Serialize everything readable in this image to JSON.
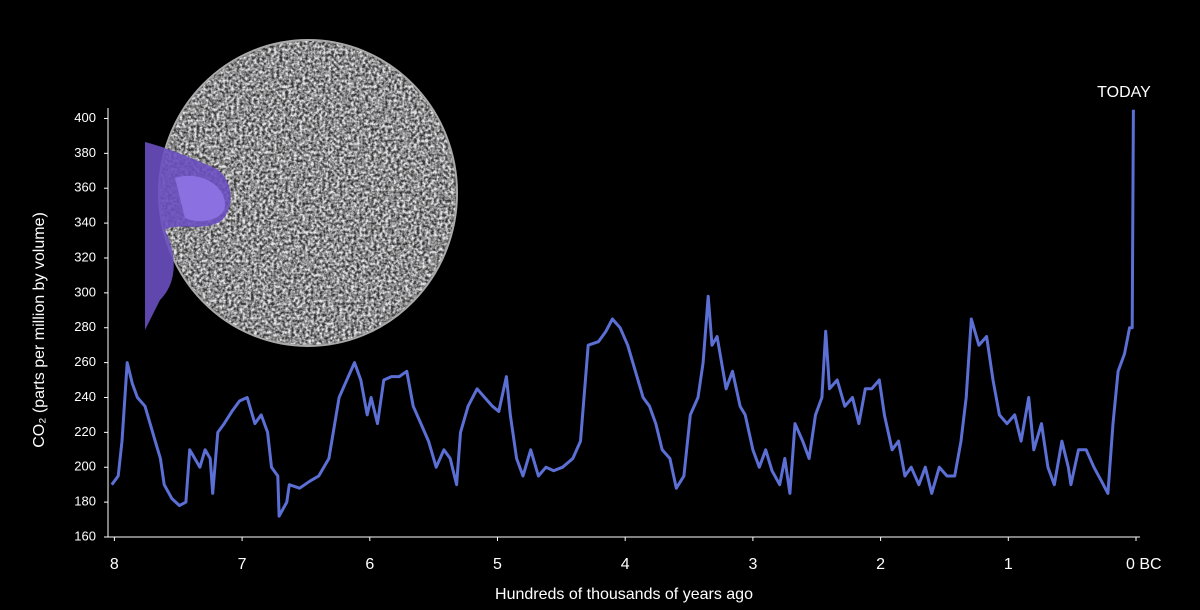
{
  "chart_data": {
    "type": "line",
    "annotation": "TODAY",
    "x_label": "Hundreds of thousands of years ago",
    "y_label": "CO₂ (parts per million by volume)",
    "x": [
      8.02,
      7.97,
      7.94,
      7.9,
      7.86,
      7.82,
      7.76,
      7.72,
      7.68,
      7.64,
      7.61,
      7.55,
      7.49,
      7.44,
      7.41,
      7.37,
      7.33,
      7.29,
      7.25,
      7.23,
      7.19,
      7.14,
      7.08,
      7.02,
      6.96,
      6.9,
      6.85,
      6.8,
      6.77,
      6.72,
      6.71,
      6.65,
      6.63,
      6.55,
      6.47,
      6.4,
      6.32,
      6.24,
      6.18,
      6.12,
      6.07,
      6.02,
      5.99,
      5.94,
      5.89,
      5.83,
      5.77,
      5.71,
      5.66,
      5.6,
      5.54,
      5.48,
      5.42,
      5.37,
      5.32,
      5.29,
      5.23,
      5.16,
      5.1,
      5.04,
      4.99,
      4.93,
      4.9,
      4.85,
      4.8,
      4.74,
      4.68,
      4.62,
      4.56,
      4.49,
      4.41,
      4.35,
      4.29,
      4.21,
      4.15,
      4.1,
      4.04,
      3.98,
      3.92,
      3.86,
      3.81,
      3.76,
      3.71,
      3.65,
      3.6,
      3.54,
      3.49,
      3.43,
      3.39,
      3.35,
      3.32,
      3.28,
      3.21,
      3.16,
      3.1,
      3.06,
      3.0,
      2.95,
      2.9,
      2.85,
      2.79,
      2.75,
      2.71,
      2.67,
      2.61,
      2.56,
      2.51,
      2.46,
      2.43,
      2.4,
      2.34,
      2.28,
      2.22,
      2.17,
      2.12,
      2.07,
      2.01,
      1.97,
      1.91,
      1.86,
      1.81,
      1.76,
      1.7,
      1.65,
      1.6,
      1.54,
      1.48,
      1.42,
      1.37,
      1.33,
      1.29,
      1.23,
      1.17,
      1.12,
      1.07,
      1.01,
      0.95,
      0.9,
      0.84,
      0.8,
      0.74,
      0.69,
      0.64,
      0.58,
      0.53,
      0.51,
      0.45,
      0.39,
      0.33,
      0.27,
      0.22,
      0.18,
      0.14,
      0.09,
      0.05,
      0.03,
      0.02
    ],
    "series": [
      {
        "color": "#5b6fd4",
        "values": [
          190,
          195,
          215,
          260,
          248,
          240,
          235,
          225,
          215,
          205,
          190,
          182,
          178,
          180,
          210,
          205,
          200,
          210,
          205,
          185,
          220,
          225,
          232,
          238,
          240,
          225,
          230,
          220,
          200,
          195,
          172,
          180,
          190,
          188,
          192,
          195,
          205,
          240,
          250,
          260,
          250,
          230,
          240,
          225,
          250,
          252,
          252,
          255,
          235,
          225,
          215,
          200,
          210,
          205,
          190,
          220,
          235,
          245,
          240,
          235,
          232,
          252,
          230,
          205,
          195,
          210,
          195,
          200,
          198,
          200,
          205,
          215,
          270,
          272,
          278,
          285,
          280,
          270,
          255,
          240,
          235,
          225,
          210,
          205,
          188,
          195,
          230,
          240,
          260,
          298,
          270,
          275,
          245,
          255,
          235,
          230,
          210,
          200,
          210,
          198,
          190,
          205,
          185,
          225,
          215,
          205,
          230,
          240,
          278,
          245,
          250,
          235,
          240,
          225,
          245,
          245,
          250,
          230,
          210,
          215,
          195,
          200,
          190,
          200,
          185,
          200,
          195,
          195,
          215,
          240,
          285,
          270,
          275,
          250,
          230,
          225,
          230,
          215,
          240,
          210,
          225,
          200,
          190,
          215,
          200,
          190,
          210,
          210,
          200,
          192,
          185,
          225,
          255,
          265,
          280,
          280,
          405
        ]
      }
    ],
    "xlim": [
      8.05,
      0
    ],
    "ylim": [
      160,
      406
    ],
    "xticks": [
      8,
      7,
      6,
      5,
      4,
      3,
      2,
      1,
      {
        "value": 0,
        "label": "0 BC"
      }
    ],
    "yticks": [
      160,
      180,
      200,
      220,
      240,
      260,
      280,
      300,
      320,
      340,
      360,
      380,
      400
    ]
  }
}
